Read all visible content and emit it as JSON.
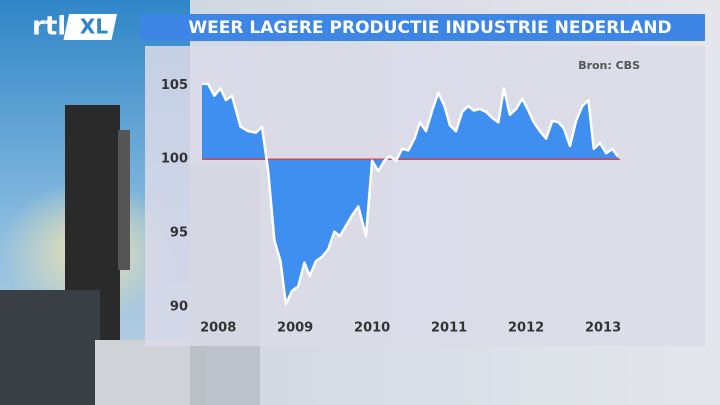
{
  "logo": {
    "main": "rtl",
    "badge": "XL"
  },
  "chart_data": {
    "type": "area",
    "title": "WEER LAGERE PRODUCTIE INDUSTRIE NEDERLAND",
    "source": "Bron: CBS",
    "color": "#3f8ff0",
    "line_color": "#ffffff",
    "baseline": 100,
    "baseline_color": "#d9434a",
    "xlim": [
      2007.79,
      2013.22
    ],
    "xticks": [
      2008,
      2009,
      2010,
      2011,
      2012,
      2013
    ],
    "ylim": [
      89.8,
      105.7
    ],
    "yticks": [
      90,
      95,
      100,
      105
    ],
    "x": [
      2007.79,
      2007.87,
      2007.95,
      2008.03,
      2008.1,
      2008.18,
      2008.29,
      2008.39,
      2008.49,
      2008.57,
      2008.65,
      2008.73,
      2008.81,
      2008.88,
      2008.96,
      2009.04,
      2009.12,
      2009.19,
      2009.27,
      2009.35,
      2009.43,
      2009.51,
      2009.58,
      2009.66,
      2009.74,
      2009.82,
      2009.92,
      2010.0,
      2010.08,
      2010.16,
      2010.23,
      2010.31,
      2010.39,
      2010.47,
      2010.55,
      2010.62,
      2010.7,
      2010.78,
      2010.86,
      2010.94,
      2011.01,
      2011.09,
      2011.17,
      2011.25,
      2011.32,
      2011.4,
      2011.48,
      2011.56,
      2011.64,
      2011.71,
      2011.79,
      2011.87,
      2011.95,
      2012.03,
      2012.1,
      2012.18,
      2012.26,
      2012.34,
      2012.42,
      2012.49,
      2012.57,
      2012.65,
      2012.73,
      2012.81,
      2012.88,
      2012.96,
      2013.04,
      2013.12,
      2013.19
    ],
    "values": [
      105.1,
      105.1,
      104.3,
      104.8,
      104.0,
      104.3,
      102.2,
      101.9,
      101.8,
      102.2,
      99.2,
      94.5,
      93.1,
      90.2,
      91.1,
      91.4,
      93.0,
      92.1,
      93.1,
      93.4,
      93.9,
      95.1,
      94.8,
      95.5,
      96.2,
      96.8,
      94.8,
      99.9,
      99.2,
      99.9,
      100.2,
      99.9,
      100.7,
      100.6,
      101.4,
      102.5,
      101.9,
      103.3,
      104.5,
      103.6,
      102.3,
      101.9,
      103.2,
      103.6,
      103.3,
      103.4,
      103.2,
      102.8,
      102.5,
      104.8,
      103.0,
      103.4,
      104.1,
      103.3,
      102.5,
      101.9,
      101.4,
      102.6,
      102.5,
      102.1,
      100.9,
      102.6,
      103.6,
      104.0,
      100.7,
      101.1,
      100.4,
      100.7,
      100.2
    ]
  }
}
